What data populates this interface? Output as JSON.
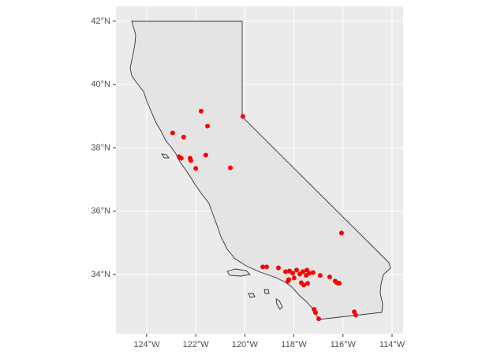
{
  "chart_data": {
    "type": "scatter",
    "color": "#ff0000",
    "grid": true,
    "xlim": [
      -125.25,
      -113.55
    ],
    "ylim": [
      32.13,
      42.47
    ],
    "xticks": [
      {
        "value": -124,
        "label": "124°W"
      },
      {
        "value": -122,
        "label": "122°W"
      },
      {
        "value": -120,
        "label": "120°W"
      },
      {
        "value": -118,
        "label": "118°W"
      },
      {
        "value": -116,
        "label": "116°W"
      },
      {
        "value": -114,
        "label": "114°W"
      }
    ],
    "yticks": [
      {
        "value": 34,
        "label": "34°N"
      },
      {
        "value": 36,
        "label": "36°N"
      },
      {
        "value": 38,
        "label": "38°N"
      },
      {
        "value": 40,
        "label": "40°N"
      },
      {
        "value": 42,
        "label": "42°N"
      }
    ],
    "x": [
      -121.78,
      -120.08,
      -121.52,
      -122.94,
      -122.49,
      -122.68,
      -122.59,
      -122.23,
      -122.2,
      -121.59,
      -122.0,
      -120.59,
      -116.06,
      -119.27,
      -119.11,
      -118.63,
      -118.34,
      -118.18,
      -118.05,
      -117.89,
      -117.76,
      -117.63,
      -117.5,
      -117.47,
      -117.38,
      -117.22,
      -118.21,
      -117.99,
      -118.24,
      -117.7,
      -117.6,
      -117.44,
      -116.93,
      -116.54,
      -116.25,
      -116.15,
      -116.32,
      -117.18,
      -117.12,
      -116.99,
      -115.54,
      -115.48
    ],
    "values": [
      39.16,
      38.99,
      38.69,
      38.47,
      38.34,
      37.72,
      37.67,
      37.67,
      37.6,
      37.77,
      37.35,
      37.37,
      35.31,
      34.24,
      34.24,
      34.21,
      34.09,
      34.11,
      34.04,
      34.14,
      34.01,
      34.09,
      33.97,
      34.14,
      34.04,
      34.06,
      33.84,
      33.89,
      33.79,
      33.74,
      33.67,
      33.72,
      33.97,
      33.92,
      33.74,
      33.72,
      33.79,
      32.9,
      32.8,
      32.6,
      32.82,
      32.72
    ]
  }
}
